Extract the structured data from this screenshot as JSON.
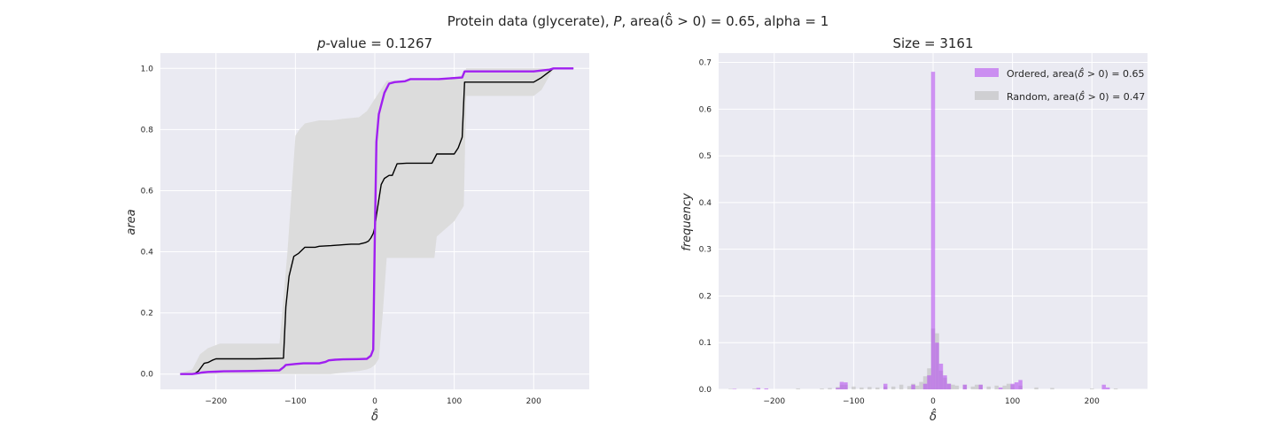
{
  "figure": {
    "suptitle": "Protein data (glycerate), P, area(δ̂ > 0) = 0.65, alpha = 1",
    "suptitle_prefix": "Protein data (glycerate), ",
    "suptitle_p": "P",
    "suptitle_rest": ", area(δ̂ > 0) = 0.65, alpha = 1"
  },
  "chart_data": [
    {
      "type": "line",
      "title": "p-value = 0.1267",
      "title_p": "p",
      "title_rest": "-value = 0.1267",
      "xlabel": "δ̂",
      "ylabel": "area",
      "xlim": [
        -270,
        270
      ],
      "ylim": [
        -0.05,
        1.05
      ],
      "xticks": [
        -200,
        -100,
        0,
        100,
        200
      ],
      "yticks": [
        0.0,
        0.2,
        0.4,
        0.6,
        0.8,
        1.0
      ],
      "xtick_labels": [
        "−200",
        "−100",
        "0",
        "100",
        "200"
      ],
      "ytick_labels": [
        "0.0",
        "0.2",
        "0.4",
        "0.6",
        "0.8",
        "1.0"
      ],
      "grid": true,
      "series": [
        {
          "role": "ordered",
          "color": "#a020f0",
          "x": [
            -245,
            -230,
            -222,
            -218,
            -210,
            -200,
            -190,
            -160,
            -120,
            -115,
            -112,
            -100,
            -90,
            -70,
            -62,
            -58,
            -50,
            -40,
            -20,
            -10,
            -5,
            -2,
            0,
            2,
            5,
            8,
            12,
            18,
            25,
            38,
            45,
            60,
            80,
            110,
            113,
            150,
            200,
            210,
            220,
            225,
            250
          ],
          "y": [
            0.0,
            0.0,
            0.003,
            0.005,
            0.007,
            0.008,
            0.009,
            0.01,
            0.012,
            0.022,
            0.03,
            0.033,
            0.035,
            0.035,
            0.04,
            0.045,
            0.047,
            0.048,
            0.049,
            0.05,
            0.06,
            0.08,
            0.45,
            0.76,
            0.85,
            0.88,
            0.92,
            0.95,
            0.955,
            0.958,
            0.965,
            0.965,
            0.965,
            0.97,
            0.99,
            0.99,
            0.99,
            0.993,
            0.996,
            1.0,
            1.0
          ]
        },
        {
          "role": "random",
          "color": "#000000",
          "x": [
            -245,
            -228,
            -222,
            -215,
            -210,
            -205,
            -200,
            -195,
            -150,
            -115,
            -112,
            -108,
            -102,
            -96,
            -88,
            -75,
            -70,
            -55,
            -40,
            -30,
            -20,
            -12,
            -8,
            -5,
            -2,
            0,
            2,
            5,
            8,
            12,
            18,
            22,
            28,
            40,
            60,
            72,
            78,
            95,
            100,
            105,
            110,
            113,
            150,
            200,
            210,
            225,
            250
          ],
          "y": [
            0.0,
            0.0,
            0.01,
            0.035,
            0.038,
            0.045,
            0.05,
            0.05,
            0.05,
            0.052,
            0.22,
            0.32,
            0.385,
            0.395,
            0.415,
            0.415,
            0.418,
            0.42,
            0.423,
            0.425,
            0.425,
            0.43,
            0.435,
            0.445,
            0.46,
            0.48,
            0.52,
            0.57,
            0.62,
            0.64,
            0.65,
            0.65,
            0.688,
            0.69,
            0.69,
            0.69,
            0.72,
            0.72,
            0.72,
            0.74,
            0.775,
            0.955,
            0.955,
            0.955,
            0.97,
            1.0,
            1.0
          ]
        }
      ],
      "band": {
        "color": "#dcdcdc",
        "x": [
          -245,
          -230,
          -220,
          -210,
          -195,
          -150,
          -120,
          -110,
          -100,
          -95,
          -88,
          -70,
          -55,
          -40,
          -20,
          -10,
          -5,
          0,
          5,
          10,
          15,
          20,
          25,
          40,
          60,
          75,
          78,
          100,
          112,
          115,
          150,
          200,
          210,
          225,
          250
        ],
        "lower": [
          0.0,
          0.0,
          0.0,
          0.0,
          0.0,
          0.0,
          0.0,
          0.0,
          0.0,
          0.0,
          0.0,
          0.0,
          0.0,
          0.005,
          0.01,
          0.015,
          0.02,
          0.03,
          0.05,
          0.2,
          0.38,
          0.38,
          0.38,
          0.38,
          0.38,
          0.38,
          0.45,
          0.5,
          0.55,
          0.91,
          0.91,
          0.91,
          0.93,
          1.0,
          1.0
        ],
        "upper": [
          0.003,
          0.015,
          0.065,
          0.085,
          0.1,
          0.1,
          0.1,
          0.4,
          0.78,
          0.8,
          0.82,
          0.83,
          0.83,
          0.835,
          0.84,
          0.86,
          0.88,
          0.9,
          0.92,
          0.94,
          0.96,
          0.96,
          0.96,
          0.96,
          0.96,
          0.96,
          0.96,
          0.97,
          0.98,
          1.0,
          1.0,
          1.0,
          1.0,
          1.0,
          1.0
        ]
      }
    },
    {
      "type": "bar",
      "title": "Size = 3161",
      "xlabel": "δ̂",
      "ylabel": "frequency",
      "xlim": [
        -270,
        270
      ],
      "ylim": [
        0,
        0.72
      ],
      "xticks": [
        -200,
        -100,
        0,
        100,
        200
      ],
      "yticks": [
        0.0,
        0.1,
        0.2,
        0.3,
        0.4,
        0.5,
        0.6,
        0.7
      ],
      "xtick_labels": [
        "−200",
        "−100",
        "0",
        "100",
        "200"
      ],
      "ytick_labels": [
        "0.0",
        "0.1",
        "0.2",
        "0.3",
        "0.4",
        "0.5",
        "0.6",
        "0.7"
      ],
      "grid": true,
      "legend_position": "top-right",
      "bin_width": 5,
      "series": [
        {
          "name": "Ordered, area(δ̂ > 0) = 0.65",
          "name_prefix": "Ordered, area(",
          "name_suffix": " > 0) = 0.65",
          "color": "#b650f0",
          "bins": [
            [
              -250,
              0.001
            ],
            [
              -220,
              0.003
            ],
            [
              -210,
              0.002
            ],
            [
              -120,
              0.003
            ],
            [
              -115,
              0.016
            ],
            [
              -110,
              0.015
            ],
            [
              -60,
              0.012
            ],
            [
              -25,
              0.01
            ],
            [
              -10,
              0.012
            ],
            [
              -5,
              0.03
            ],
            [
              0,
              0.68
            ],
            [
              5,
              0.1
            ],
            [
              10,
              0.055
            ],
            [
              15,
              0.03
            ],
            [
              20,
              0.012
            ],
            [
              40,
              0.01
            ],
            [
              60,
              0.01
            ],
            [
              85,
              0.004
            ],
            [
              100,
              0.012
            ],
            [
              105,
              0.015
            ],
            [
              110,
              0.02
            ],
            [
              215,
              0.01
            ],
            [
              220,
              0.004
            ]
          ]
        },
        {
          "name": "Random, area(δ̂ > 0) = 0.47",
          "name_prefix": "Random, area(",
          "name_suffix": " > 0) = 0.47",
          "color": "#bdbdbd",
          "bins": [
            [
              -255,
              0.001
            ],
            [
              -225,
              0.002
            ],
            [
              -170,
              0.002
            ],
            [
              -140,
              0.002
            ],
            [
              -130,
              0.003
            ],
            [
              -120,
              0.005
            ],
            [
              -115,
              0.01
            ],
            [
              -110,
              0.01
            ],
            [
              -100,
              0.006
            ],
            [
              -90,
              0.004
            ],
            [
              -80,
              0.005
            ],
            [
              -70,
              0.004
            ],
            [
              -60,
              0.006
            ],
            [
              -50,
              0.006
            ],
            [
              -40,
              0.01
            ],
            [
              -30,
              0.007
            ],
            [
              -25,
              0.012
            ],
            [
              -20,
              0.008
            ],
            [
              -15,
              0.016
            ],
            [
              -10,
              0.028
            ],
            [
              -5,
              0.045
            ],
            [
              0,
              0.13
            ],
            [
              5,
              0.12
            ],
            [
              10,
              0.04
            ],
            [
              15,
              0.025
            ],
            [
              20,
              0.012
            ],
            [
              25,
              0.01
            ],
            [
              30,
              0.008
            ],
            [
              40,
              0.01
            ],
            [
              50,
              0.006
            ],
            [
              55,
              0.01
            ],
            [
              60,
              0.01
            ],
            [
              70,
              0.006
            ],
            [
              80,
              0.008
            ],
            [
              90,
              0.008
            ],
            [
              95,
              0.012
            ],
            [
              100,
              0.01
            ],
            [
              110,
              0.008
            ],
            [
              130,
              0.004
            ],
            [
              150,
              0.003
            ],
            [
              200,
              0.002
            ],
            [
              230,
              0.002
            ]
          ]
        }
      ]
    }
  ]
}
